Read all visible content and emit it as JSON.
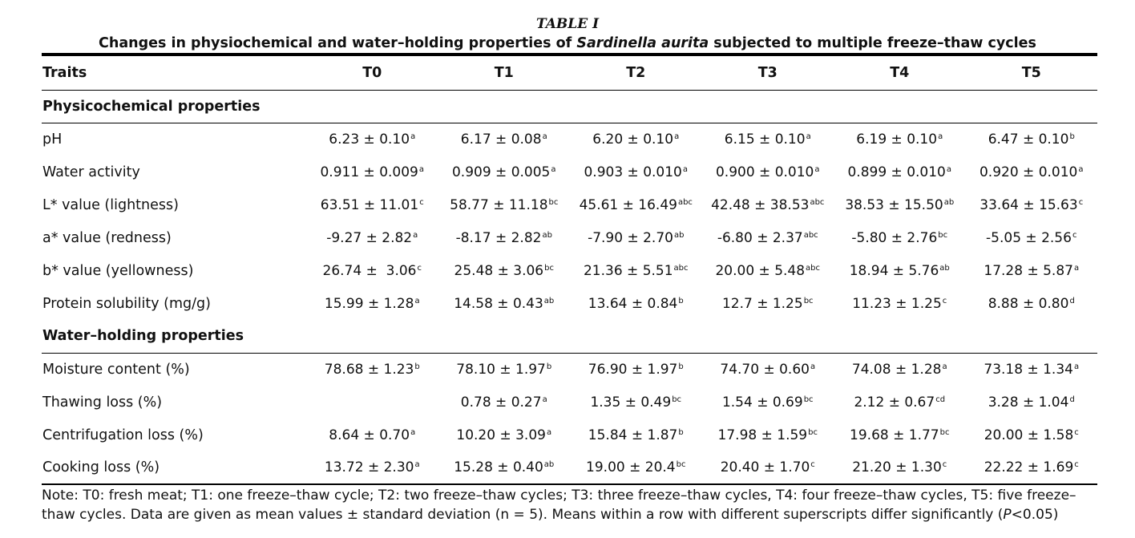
{
  "table": {
    "label": "TABLE I",
    "caption_before": "Changes in physiochemical and water–holding properties of ",
    "caption_species": "Sardinella aurita",
    "caption_after": " subjected to multiple freeze–thaw cycles",
    "headers": [
      "Traits",
      "T0",
      "T1",
      "T2",
      "T3",
      "T4",
      "T5"
    ],
    "sections": [
      {
        "title": "Physicochemical properties",
        "rows": [
          {
            "trait": "pH",
            "cells": [
              {
                "value": "6.23 ± 0.10",
                "sup": "a"
              },
              {
                "value": "6.17 ± 0.08",
                "sup": "a"
              },
              {
                "value": "6.20 ± 0.10",
                "sup": "a"
              },
              {
                "value": "6.15 ± 0.10",
                "sup": "a"
              },
              {
                "value": "6.19 ± 0.10",
                "sup": "a"
              },
              {
                "value": "6.47 ± 0.10",
                "sup": "b"
              }
            ]
          },
          {
            "trait": "Water activity",
            "cells": [
              {
                "value": "0.911 ± 0.009",
                "sup": "a"
              },
              {
                "value": "0.909 ± 0.005",
                "sup": "a"
              },
              {
                "value": "0.903 ± 0.010",
                "sup": "a"
              },
              {
                "value": "0.900 ± 0.010",
                "sup": "a"
              },
              {
                "value": "0.899 ± 0.010",
                "sup": "a"
              },
              {
                "value": "0.920 ± 0.010",
                "sup": "a"
              }
            ]
          },
          {
            "trait": "L* value (lightness)",
            "cells": [
              {
                "value": "63.51 ± 11.01",
                "sup": "c"
              },
              {
                "value": "58.77 ± 11.18",
                "sup": "bc"
              },
              {
                "value": "45.61 ± 16.49",
                "sup": "abc"
              },
              {
                "value": "42.48 ± 38.53",
                "sup": "abc"
              },
              {
                "value": "38.53 ± 15.50",
                "sup": "ab"
              },
              {
                "value": "33.64 ± 15.63",
                "sup": "c"
              }
            ]
          },
          {
            "trait": "a* value (redness)",
            "cells": [
              {
                "value": "-9.27 ± 2.82",
                "sup": "a"
              },
              {
                "value": "-8.17 ± 2.82",
                "sup": "ab"
              },
              {
                "value": "-7.90 ± 2.70",
                "sup": "ab"
              },
              {
                "value": "-6.80 ± 2.37",
                "sup": "abc"
              },
              {
                "value": "-5.80 ± 2.76",
                "sup": "bc"
              },
              {
                "value": "-5.05 ± 2.56",
                "sup": "c"
              }
            ]
          },
          {
            "trait": "b* value (yellowness)",
            "cells": [
              {
                "value": "26.74 ±  3.06",
                "sup": "c"
              },
              {
                "value": "25.48 ± 3.06",
                "sup": "bc"
              },
              {
                "value": "21.36 ± 5.51",
                "sup": "abc"
              },
              {
                "value": "20.00 ± 5.48",
                "sup": "abc"
              },
              {
                "value": "18.94 ± 5.76",
                "sup": "ab"
              },
              {
                "value": "17.28 ± 5.87",
                "sup": "a"
              }
            ]
          },
          {
            "trait": "Protein solubility (mg/g)",
            "cells": [
              {
                "value": "15.99 ± 1.28",
                "sup": "a"
              },
              {
                "value": "14.58 ± 0.43",
                "sup": "ab"
              },
              {
                "value": "13.64 ± 0.84",
                "sup": "b"
              },
              {
                "value": "12.7 ± 1.25",
                "sup": "bc"
              },
              {
                "value": "11.23 ± 1.25",
                "sup": "c"
              },
              {
                "value": "8.88 ± 0.80",
                "sup": "d"
              }
            ]
          }
        ]
      },
      {
        "title": "Water–holding properties",
        "rows": [
          {
            "trait": "Moisture content (%)",
            "cells": [
              {
                "value": "78.68 ± 1.23",
                "sup": "b"
              },
              {
                "value": "78.10 ± 1.97",
                "sup": "b"
              },
              {
                "value": "76.90 ± 1.97",
                "sup": "b"
              },
              {
                "value": "74.70 ± 0.60",
                "sup": "a"
              },
              {
                "value": "74.08 ± 1.28",
                "sup": "a"
              },
              {
                "value": "73.18 ± 1.34",
                "sup": "a"
              }
            ]
          },
          {
            "trait": "Thawing loss (%)",
            "cells": [
              {
                "value": "",
                "sup": ""
              },
              {
                "value": "0.78 ± 0.27",
                "sup": "a"
              },
              {
                "value": "1.35 ± 0.49",
                "sup": "bc"
              },
              {
                "value": "1.54 ± 0.69",
                "sup": "bc"
              },
              {
                "value": "2.12 ± 0.67",
                "sup": "cd"
              },
              {
                "value": "3.28 ± 1.04",
                "sup": "d"
              }
            ]
          },
          {
            "trait": "Centrifugation loss (%)",
            "cells": [
              {
                "value": "8.64 ± 0.70",
                "sup": "a"
              },
              {
                "value": "10.20 ± 3.09",
                "sup": "a"
              },
              {
                "value": "15.84 ± 1.87",
                "sup": "b"
              },
              {
                "value": "17.98 ± 1.59",
                "sup": "bc"
              },
              {
                "value": "19.68 ± 1.77",
                "sup": "bc"
              },
              {
                "value": "20.00 ± 1.58",
                "sup": "c"
              }
            ]
          },
          {
            "trait": "Cooking loss (%)",
            "cells": [
              {
                "value": "13.72 ± 2.30",
                "sup": "a"
              },
              {
                "value": "15.28 ± 0.40",
                "sup": "ab"
              },
              {
                "value": "19.00 ± 20.4",
                "sup": "bc"
              },
              {
                "value": "20.40 ± 1.70",
                "sup": "c"
              },
              {
                "value": "21.20 ± 1.30",
                "sup": "c"
              },
              {
                "value": "22.22 ± 1.69",
                "sup": "c"
              }
            ]
          }
        ]
      }
    ],
    "note_before": "Note: T0: fresh meat; T1: one freeze–thaw cycle; T2: two freeze–thaw cycles; T3: three freeze–thaw cycles, T4: four freeze–thaw cycles, T5: five freeze–thaw cycles. Data are given as mean values ± standard deviation (n = 5). Means within a row with different superscripts differ significantly (",
    "note_p": "P",
    "note_after": "<0.05)"
  }
}
